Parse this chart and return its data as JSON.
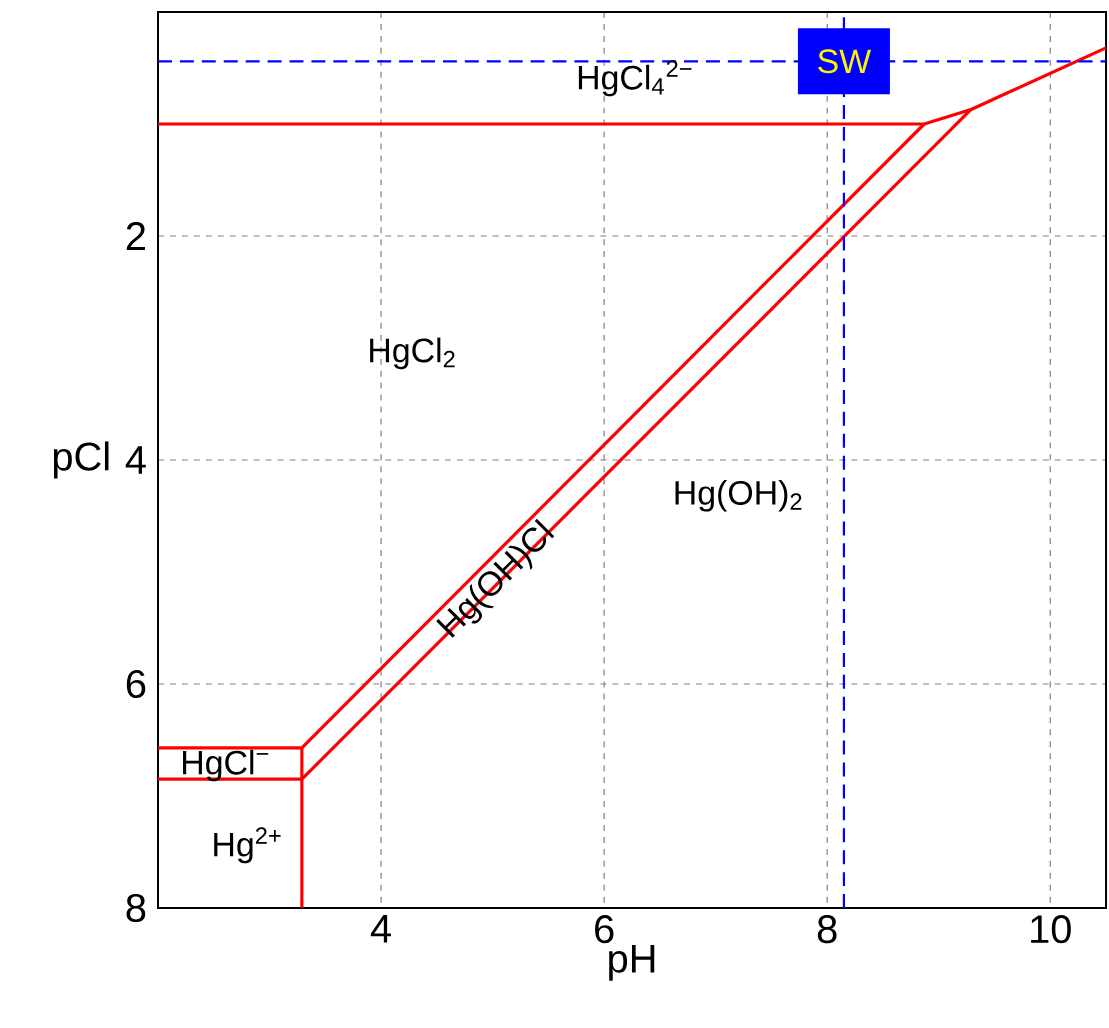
{
  "chart_data": {
    "type": "line",
    "xlabel": "pH",
    "ylabel": "pCl",
    "xlim": [
      2,
      10.5
    ],
    "ylim": [
      8,
      0
    ],
    "xticks": [
      4,
      6,
      8,
      10
    ],
    "yticks": [
      2,
      4,
      6,
      8
    ],
    "grid": true,
    "series": [
      {
        "color": "#ff0000",
        "x": [
          2,
          8.87,
          9.29,
          10.5
        ],
        "values": [
          1.0,
          1.0,
          0.87,
          0.32
        ]
      },
      {
        "color": "#ff0000",
        "x": [
          8.87,
          3.29
        ],
        "values": [
          1.0,
          6.57
        ]
      },
      {
        "color": "#ff0000",
        "x": [
          9.29,
          3.29
        ],
        "values": [
          0.87,
          6.85
        ]
      },
      {
        "color": "#ff0000",
        "x": [
          2,
          3.29
        ],
        "values": [
          6.57,
          6.57
        ]
      },
      {
        "color": "#ff0000",
        "x": [
          2,
          3.29
        ],
        "values": [
          6.85,
          6.85
        ]
      },
      {
        "color": "#ff0000",
        "x": [
          3.29,
          3.29
        ],
        "values": [
          6.57,
          8
        ]
      }
    ],
    "ref_lines": [
      {
        "axis": "x",
        "value": 8.15,
        "color": "#0000ff",
        "line_style": "dashed"
      },
      {
        "axis": "y",
        "value": 0.44,
        "color": "#0000ff",
        "line_style": "dashed"
      }
    ],
    "annotations": [
      "HgCl$_{4}$$^{2−}$",
      "HgCl$_{2}$",
      "Hg(OH)$_{2}$",
      {
        "text": "Hg(OH)Cl",
        "x": 5.04,
        "y": 5.08
      },
      "HgCl$^{−}$",
      "Hg$^{2+}$",
      {
        "text": "SW",
        "x": 8.15,
        "y": 0.44
      }
    ]
  }
}
